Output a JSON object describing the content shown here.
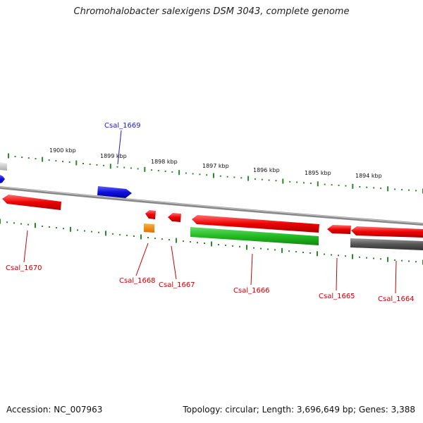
{
  "title": "Chromohalobacter salexigens DSM 3043, complete genome",
  "footer": {
    "accession": "Accession: NC_007963",
    "summary": "Topology: circular; Length: 3,696,649 bp; Genes: 3,388"
  },
  "scale_labels": [
    "1900 kbp",
    "1899 kbp",
    "1898 kbp",
    "1897 kbp",
    "1896 kbp",
    "1895 kbp",
    "1894 kbp"
  ],
  "gene_labels": [
    {
      "id": "Csal_1669",
      "color": "#1a1acc"
    },
    {
      "id": "Csal_1670",
      "color": "#cc0000"
    },
    {
      "id": "Csal_1668",
      "color": "#cc0000"
    },
    {
      "id": "Csal_1667",
      "color": "#cc0000"
    },
    {
      "id": "Csal_1666",
      "color": "#cc0000"
    },
    {
      "id": "Csal_1665",
      "color": "#cc0000"
    },
    {
      "id": "Csal_1664",
      "color": "#cc0000"
    }
  ],
  "colors": {
    "forward_cds": "#ee1111",
    "reverse_cds": "#ee1111",
    "blue_feature": "#1a1add",
    "green_feature": "#22bb22",
    "orange_feature": "#ff8c00",
    "gray_feature": "#555555",
    "backbone": "#888888",
    "tick": "#2a8a2a"
  }
}
